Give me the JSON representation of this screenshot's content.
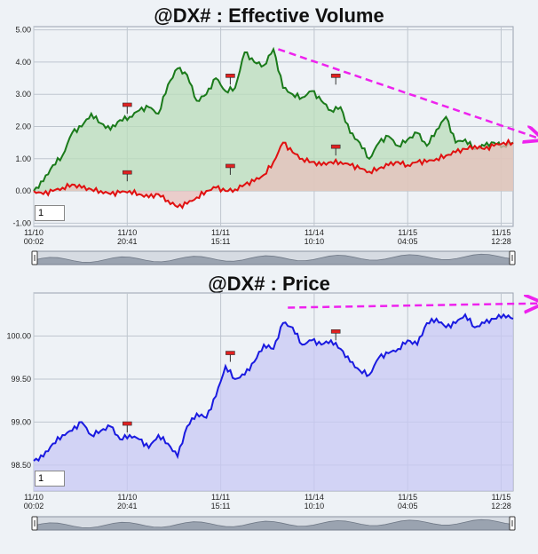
{
  "chart_data": [
    {
      "type": "area",
      "title": "@DX# : Effective Volume",
      "ylim": [
        -1.1,
        5.1
      ],
      "y_ticks": [
        "5.00",
        "4.00",
        "3.00",
        "2.00",
        "1.00",
        "0.00",
        "-1.00"
      ],
      "y_tick_values": [
        5,
        4,
        3,
        2,
        1,
        0,
        -1
      ],
      "x_tick_labels": [
        [
          "11/10",
          "00:02"
        ],
        [
          "11/10",
          "20:41"
        ],
        [
          "11/11",
          "15:11"
        ],
        [
          "11/14",
          "10:10"
        ],
        [
          "11/15",
          "04:05"
        ],
        [
          "11/15",
          "12:28"
        ]
      ],
      "x_tick_positions": [
        0,
        0.195,
        0.39,
        0.585,
        0.78,
        0.975
      ],
      "series": [
        {
          "color": "#1a7a1a",
          "fill": "#b9dcb9",
          "x": [
            0,
            0.02,
            0.04,
            0.06,
            0.08,
            0.1,
            0.12,
            0.14,
            0.16,
            0.18,
            0.2,
            0.22,
            0.24,
            0.26,
            0.28,
            0.3,
            0.32,
            0.34,
            0.36,
            0.38,
            0.4,
            0.42,
            0.44,
            0.46,
            0.48,
            0.5,
            0.52,
            0.54,
            0.56,
            0.58,
            0.6,
            0.62,
            0.64,
            0.66,
            0.68,
            0.7,
            0.72,
            0.74,
            0.76,
            0.78,
            0.8,
            0.82,
            0.84,
            0.86,
            0.88,
            0.9,
            0.92,
            0.94,
            0.96,
            0.98,
            1.0
          ],
          "y": [
            0.0,
            0.3,
            0.8,
            1.1,
            1.8,
            2.0,
            2.4,
            2.1,
            1.9,
            2.2,
            2.3,
            2.5,
            2.6,
            2.4,
            3.3,
            3.8,
            3.6,
            2.8,
            3.0,
            3.5,
            3.1,
            3.2,
            4.3,
            4.0,
            3.9,
            4.4,
            3.2,
            3.0,
            2.9,
            3.1,
            2.8,
            2.5,
            2.6,
            1.8,
            1.5,
            1.0,
            1.5,
            1.7,
            1.4,
            1.6,
            1.8,
            1.4,
            1.9,
            2.3,
            1.5,
            1.6,
            1.3,
            1.4,
            1.5,
            1.4,
            1.5
          ]
        },
        {
          "color": "#e01010",
          "fill": "#e8c0bc",
          "x": [
            0,
            0.02,
            0.04,
            0.06,
            0.08,
            0.1,
            0.12,
            0.14,
            0.16,
            0.18,
            0.2,
            0.22,
            0.24,
            0.26,
            0.28,
            0.3,
            0.32,
            0.34,
            0.36,
            0.38,
            0.4,
            0.42,
            0.44,
            0.46,
            0.48,
            0.5,
            0.52,
            0.54,
            0.56,
            0.58,
            0.6,
            0.62,
            0.64,
            0.66,
            0.68,
            0.7,
            0.72,
            0.74,
            0.76,
            0.78,
            0.8,
            0.82,
            0.84,
            0.86,
            0.88,
            0.9,
            0.92,
            0.94,
            0.96,
            0.98,
            1.0
          ],
          "y": [
            0.0,
            -0.1,
            0.0,
            0.1,
            0.2,
            0.1,
            0.05,
            0.0,
            -0.1,
            -0.05,
            0.0,
            -0.1,
            -0.2,
            -0.1,
            -0.3,
            -0.5,
            -0.4,
            -0.2,
            0.0,
            0.1,
            0.0,
            0.05,
            0.2,
            0.3,
            0.5,
            0.9,
            1.5,
            1.2,
            1.0,
            0.9,
            0.8,
            0.9,
            0.9,
            0.8,
            0.7,
            0.6,
            0.7,
            0.8,
            0.9,
            0.8,
            0.9,
            0.9,
            1.0,
            1.1,
            1.2,
            1.3,
            1.4,
            1.3,
            1.4,
            1.5,
            1.5
          ]
        }
      ],
      "markers": [
        {
          "x": 0.195,
          "y": 2.4
        },
        {
          "x": 0.195,
          "y": 0.3
        },
        {
          "x": 0.41,
          "y": 3.3
        },
        {
          "x": 0.41,
          "y": 0.5
        },
        {
          "x": 0.63,
          "y": 3.3
        },
        {
          "x": 0.63,
          "y": 1.1
        }
      ],
      "trend_arrow": {
        "color": "#ee22ee",
        "x0": 0.51,
        "y0": 4.4,
        "x1": 1.06,
        "y1": 1.6
      }
    },
    {
      "type": "area",
      "title": "@DX# : Price",
      "ylim": [
        98.2,
        100.5
      ],
      "y_ticks": [
        "100.00",
        "99.50",
        "99.00",
        "98.50"
      ],
      "y_tick_values": [
        100.0,
        99.5,
        99.0,
        98.5
      ],
      "x_tick_labels": [
        [
          "11/10",
          "00:02"
        ],
        [
          "11/10",
          "20:41"
        ],
        [
          "11/11",
          "15:11"
        ],
        [
          "11/14",
          "10:10"
        ],
        [
          "11/15",
          "04:05"
        ],
        [
          "11/15",
          "12:28"
        ]
      ],
      "x_tick_positions": [
        0,
        0.195,
        0.39,
        0.585,
        0.78,
        0.975
      ],
      "series": [
        {
          "color": "#1a1ae0",
          "fill": "#c8c8f4",
          "x": [
            0,
            0.02,
            0.04,
            0.06,
            0.08,
            0.1,
            0.12,
            0.14,
            0.16,
            0.18,
            0.2,
            0.22,
            0.24,
            0.26,
            0.28,
            0.3,
            0.32,
            0.34,
            0.36,
            0.38,
            0.4,
            0.42,
            0.44,
            0.46,
            0.48,
            0.5,
            0.52,
            0.54,
            0.56,
            0.58,
            0.6,
            0.62,
            0.64,
            0.66,
            0.68,
            0.7,
            0.72,
            0.74,
            0.76,
            0.78,
            0.8,
            0.82,
            0.84,
            0.86,
            0.88,
            0.9,
            0.92,
            0.94,
            0.96,
            0.98,
            1.0
          ],
          "y": [
            98.55,
            98.6,
            98.75,
            98.85,
            98.9,
            99.0,
            98.85,
            98.9,
            98.95,
            98.8,
            98.85,
            98.8,
            98.7,
            98.85,
            98.75,
            98.6,
            98.95,
            99.1,
            99.05,
            99.3,
            99.65,
            99.5,
            99.55,
            99.7,
            99.9,
            99.85,
            100.15,
            100.1,
            99.9,
            99.95,
            99.9,
            99.95,
            99.85,
            99.7,
            99.6,
            99.55,
            99.75,
            99.8,
            99.85,
            99.95,
            99.9,
            100.15,
            100.2,
            100.1,
            100.15,
            100.25,
            100.1,
            100.15,
            100.2,
            100.25,
            100.2
          ]
        }
      ],
      "markers": [
        {
          "x": 0.195,
          "y": 98.88
        },
        {
          "x": 0.41,
          "y": 99.7
        },
        {
          "x": 0.63,
          "y": 99.95
        }
      ],
      "trend_arrow": {
        "color": "#ee22ee",
        "x0": 0.53,
        "y0": 100.33,
        "x1": 1.06,
        "y1": 100.38
      }
    }
  ],
  "inputs": [
    {
      "value": "1"
    },
    {
      "value": "1"
    }
  ],
  "colors": {
    "grid": "#bfc6cf",
    "plot_bg": "#eef2f6",
    "scroll_track": "#d6dbe2",
    "scroll_fill": "#9aa3b0"
  }
}
